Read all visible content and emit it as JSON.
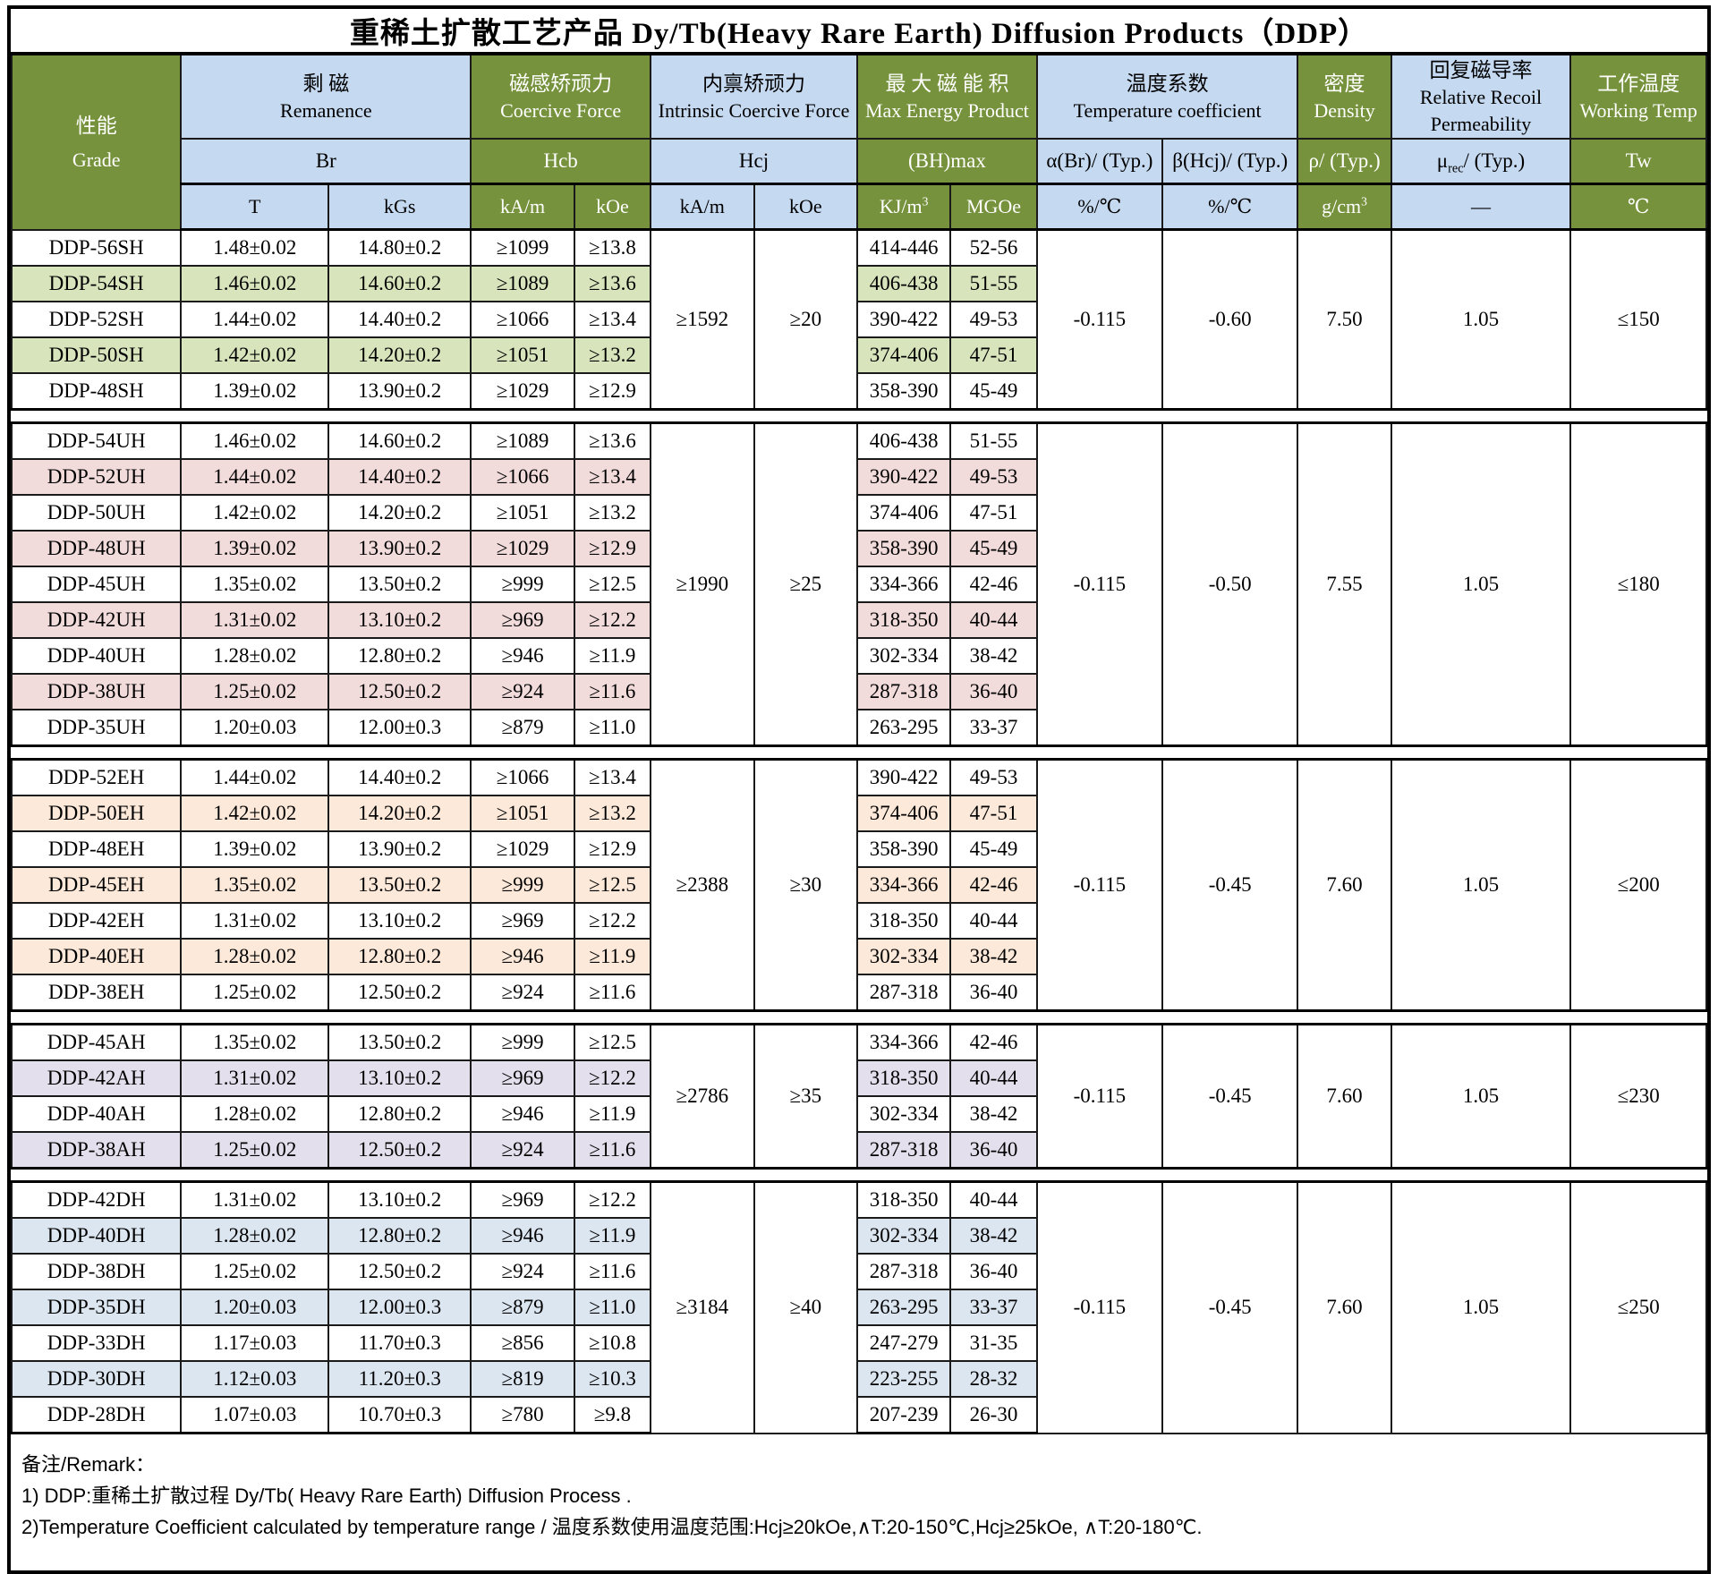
{
  "title": "重稀土扩散工艺产品 Dy/Tb(Heavy Rare Earth) Diffusion Products（DDP）",
  "columns": {
    "grade_zh": "性能",
    "grade_en": "Grade",
    "remanence_zh": "剩 磁",
    "remanence_en": "Remanence",
    "coercive_zh": "磁感矫顽力",
    "coercive_en": "Coercive Force",
    "intrinsic_zh": "内禀矫顽力",
    "intrinsic_en": "Intrinsic Coercive Force",
    "energy_zh": "最 大 磁 能 积",
    "energy_en": "Max Energy Product",
    "tempco_zh": "温度系数",
    "tempco_en": "Temperature coefficient",
    "density_zh": "密度",
    "density_en": "Density",
    "permeability_zh": "回复磁导率",
    "permeability_en": "Relative Recoil Permeability",
    "working_zh": "工作温度",
    "working_en": "Working Temp",
    "br": "Br",
    "hcb": "Hcb",
    "hcj": "Hcj",
    "bhmax": "(BH)max",
    "alpha": "α(Br)/ (Typ.)",
    "beta": "β(Hcj)/ (Typ.)",
    "rho": "ρ/ (Typ.)",
    "murec_sym": "μ",
    "murec_sub": "rec",
    "murec_rest": "/ (Typ.)",
    "tw": "Tw",
    "units": {
      "t": "T",
      "kgs": "kGs",
      "kam": "kA/m",
      "koe": "kOe",
      "kjm3": "KJ/m",
      "gcm3": "g/cm",
      "sup3": "3",
      "mgoe": "MGOe",
      "pct_c": "%/℃",
      "dash": "—",
      "celsius": "℃"
    }
  },
  "groups": [
    {
      "name": "SH",
      "tint": "#D7E4BC",
      "hcj_kam": "≥1592",
      "hcj_koe": "≥20",
      "alpha": "-0.115",
      "beta": "-0.60",
      "density": "7.50",
      "murec": "1.05",
      "tw": "≤150",
      "rows": [
        [
          "DDP-56SH",
          "1.48±0.02",
          "14.80±0.2",
          "≥1099",
          "≥13.8",
          "414-446",
          "52-56"
        ],
        [
          "DDP-54SH",
          "1.46±0.02",
          "14.60±0.2",
          "≥1089",
          "≥13.6",
          "406-438",
          "51-55"
        ],
        [
          "DDP-52SH",
          "1.44±0.02",
          "14.40±0.2",
          "≥1066",
          "≥13.4",
          "390-422",
          "49-53"
        ],
        [
          "DDP-50SH",
          "1.42±0.02",
          "14.20±0.2",
          "≥1051",
          "≥13.2",
          "374-406",
          "47-51"
        ],
        [
          "DDP-48SH",
          "1.39±0.02",
          "13.90±0.2",
          "≥1029",
          "≥12.9",
          "358-390",
          "45-49"
        ]
      ]
    },
    {
      "name": "UH",
      "tint": "#F2DCDB",
      "hcj_kam": "≥1990",
      "hcj_koe": "≥25",
      "alpha": "-0.115",
      "beta": "-0.50",
      "density": "7.55",
      "murec": "1.05",
      "tw": "≤180",
      "rows": [
        [
          "DDP-54UH",
          "1.46±0.02",
          "14.60±0.2",
          "≥1089",
          "≥13.6",
          "406-438",
          "51-55"
        ],
        [
          "DDP-52UH",
          "1.44±0.02",
          "14.40±0.2",
          "≥1066",
          "≥13.4",
          "390-422",
          "49-53"
        ],
        [
          "DDP-50UH",
          "1.42±0.02",
          "14.20±0.2",
          "≥1051",
          "≥13.2",
          "374-406",
          "47-51"
        ],
        [
          "DDP-48UH",
          "1.39±0.02",
          "13.90±0.2",
          "≥1029",
          "≥12.9",
          "358-390",
          "45-49"
        ],
        [
          "DDP-45UH",
          "1.35±0.02",
          "13.50±0.2",
          "≥999",
          "≥12.5",
          "334-366",
          "42-46"
        ],
        [
          "DDP-42UH",
          "1.31±0.02",
          "13.10±0.2",
          "≥969",
          "≥12.2",
          "318-350",
          "40-44"
        ],
        [
          "DDP-40UH",
          "1.28±0.02",
          "12.80±0.2",
          "≥946",
          "≥11.9",
          "302-334",
          "38-42"
        ],
        [
          "DDP-38UH",
          "1.25±0.02",
          "12.50±0.2",
          "≥924",
          "≥11.6",
          "287-318",
          "36-40"
        ],
        [
          "DDP-35UH",
          "1.20±0.03",
          "12.00±0.3",
          "≥879",
          "≥11.0",
          "263-295",
          "33-37"
        ]
      ]
    },
    {
      "name": "EH",
      "tint": "#FDE9D9",
      "hcj_kam": "≥2388",
      "hcj_koe": "≥30",
      "alpha": "-0.115",
      "beta": "-0.45",
      "density": "7.60",
      "murec": "1.05",
      "tw": "≤200",
      "rows": [
        [
          "DDP-52EH",
          "1.44±0.02",
          "14.40±0.2",
          "≥1066",
          "≥13.4",
          "390-422",
          "49-53"
        ],
        [
          "DDP-50EH",
          "1.42±0.02",
          "14.20±0.2",
          "≥1051",
          "≥13.2",
          "374-406",
          "47-51"
        ],
        [
          "DDP-48EH",
          "1.39±0.02",
          "13.90±0.2",
          "≥1029",
          "≥12.9",
          "358-390",
          "45-49"
        ],
        [
          "DDP-45EH",
          "1.35±0.02",
          "13.50±0.2",
          "≥999",
          "≥12.5",
          "334-366",
          "42-46"
        ],
        [
          "DDP-42EH",
          "1.31±0.02",
          "13.10±0.2",
          "≥969",
          "≥12.2",
          "318-350",
          "40-44"
        ],
        [
          "DDP-40EH",
          "1.28±0.02",
          "12.80±0.2",
          "≥946",
          "≥11.9",
          "302-334",
          "38-42"
        ],
        [
          "DDP-38EH",
          "1.25±0.02",
          "12.50±0.2",
          "≥924",
          "≥11.6",
          "287-318",
          "36-40"
        ]
      ]
    },
    {
      "name": "AH",
      "tint": "#E4DFEC",
      "hcj_kam": "≥2786",
      "hcj_koe": "≥35",
      "alpha": "-0.115",
      "beta": "-0.45",
      "density": "7.60",
      "murec": "1.05",
      "tw": "≤230",
      "rows": [
        [
          "DDP-45AH",
          "1.35±0.02",
          "13.50±0.2",
          "≥999",
          "≥12.5",
          "334-366",
          "42-46"
        ],
        [
          "DDP-42AH",
          "1.31±0.02",
          "13.10±0.2",
          "≥969",
          "≥12.2",
          "318-350",
          "40-44"
        ],
        [
          "DDP-40AH",
          "1.28±0.02",
          "12.80±0.2",
          "≥946",
          "≥11.9",
          "302-334",
          "38-42"
        ],
        [
          "DDP-38AH",
          "1.25±0.02",
          "12.50±0.2",
          "≥924",
          "≥11.6",
          "287-318",
          "36-40"
        ]
      ]
    },
    {
      "name": "DH",
      "tint": "#DCE6F1",
      "hcj_kam": "≥3184",
      "hcj_koe": "≥40",
      "alpha": "-0.115",
      "beta": "-0.45",
      "density": "7.60",
      "murec": "1.05",
      "tw": "≤250",
      "rows": [
        [
          "DDP-42DH",
          "1.31±0.02",
          "13.10±0.2",
          "≥969",
          "≥12.2",
          "318-350",
          "40-44"
        ],
        [
          "DDP-40DH",
          "1.28±0.02",
          "12.80±0.2",
          "≥946",
          "≥11.9",
          "302-334",
          "38-42"
        ],
        [
          "DDP-38DH",
          "1.25±0.02",
          "12.50±0.2",
          "≥924",
          "≥11.6",
          "287-318",
          "36-40"
        ],
        [
          "DDP-35DH",
          "1.20±0.03",
          "12.00±0.3",
          "≥879",
          "≥11.0",
          "263-295",
          "33-37"
        ],
        [
          "DDP-33DH",
          "1.17±0.03",
          "11.70±0.3",
          "≥856",
          "≥10.8",
          "247-279",
          "31-35"
        ],
        [
          "DDP-30DH",
          "1.12±0.03",
          "11.20±0.3",
          "≥819",
          "≥10.3",
          "223-255",
          "28-32"
        ],
        [
          "DDP-28DH",
          "1.07±0.03",
          "10.70±0.3",
          "≥780",
          "≥9.8",
          "207-239",
          "26-30"
        ]
      ]
    }
  ],
  "remarks": {
    "label": "备注/Remark：",
    "line1": "1) DDP:重稀土扩散过程 Dy/Tb( Heavy Rare Earth) Diffusion Process .",
    "line2": "2)Temperature Coefficient calculated by temperature range / 温度系数使用温度范围:Hcj≥20kOe,∧T:20-150℃,Hcj≥25kOe, ∧T:20-180℃."
  },
  "colors": {
    "header_green": "#76923C",
    "header_blue": "#C5D9F1",
    "tint_sh": "#D7E4BC",
    "tint_uh": "#F2DCDB",
    "tint_eh": "#FDE9D9",
    "tint_ah": "#E4DFEC",
    "tint_dh": "#DCE6F1",
    "border": "#000000"
  }
}
